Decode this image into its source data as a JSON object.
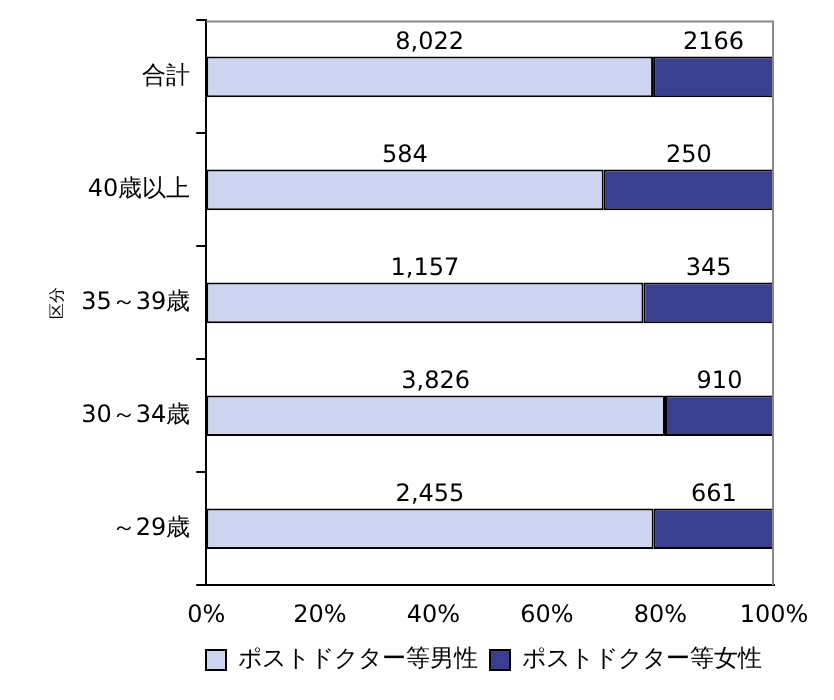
{
  "chart_data": {
    "type": "bar",
    "orientation": "horizontal",
    "stacked": true,
    "ylabel": "区分",
    "categories": [
      "合計",
      "40歳以上",
      "35～39歳",
      "30～34歳",
      "～29歳"
    ],
    "series": [
      {
        "name": "ポストドクター等男性",
        "color": "#cdd5f0",
        "values": [
          78.7,
          70.0,
          77.0,
          80.8,
          78.8
        ]
      },
      {
        "name": "ポストドクター等女性",
        "color": "#3b3f8f",
        "values": [
          21.3,
          30.0,
          23.0,
          19.2,
          21.2
        ]
      }
    ],
    "xlim": [
      0,
      100
    ],
    "xticks": [
      {
        "value": 0,
        "label": "0%"
      },
      {
        "value": 20,
        "label": "20%"
      },
      {
        "value": 40,
        "label": "40%"
      },
      {
        "value": 60,
        "label": "60%"
      },
      {
        "value": 80,
        "label": "80%"
      },
      {
        "value": 100,
        "label": "100%"
      }
    ],
    "annotations": [
      "8,022",
      "2166",
      "584",
      "250",
      "1,157",
      "345",
      "3,826",
      "910",
      "2,455",
      "661"
    ],
    "grid": false,
    "legend": "bottom"
  }
}
